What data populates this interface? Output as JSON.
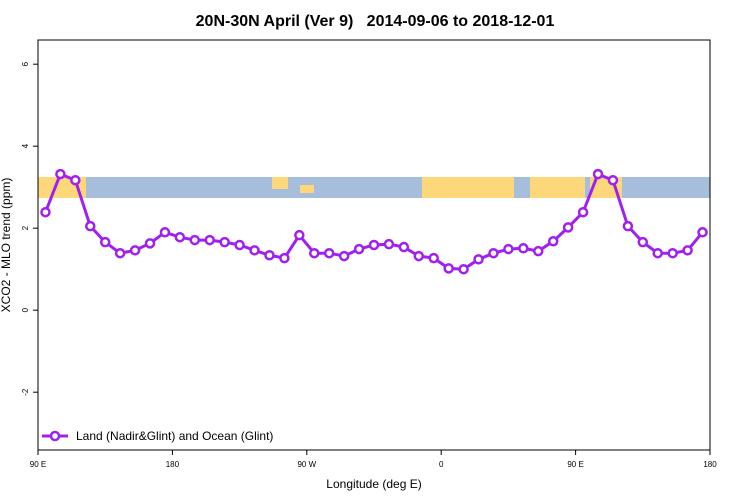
{
  "chart_data": {
    "type": "line",
    "title": "20N-30N April (Ver 9)   2014-09-06 to 2018-12-01",
    "xlabel": "Longitude (deg E)",
    "ylabel": "XCO2 - MLO trend (ppm)",
    "x": [
      95,
      105,
      115,
      125,
      135,
      145,
      155,
      165,
      175,
      185,
      195,
      205,
      215,
      225,
      235,
      245,
      255,
      265,
      275,
      285,
      295,
      305,
      315,
      325,
      335,
      345,
      355,
      365,
      375,
      385,
      395,
      405,
      415,
      425,
      435,
      445,
      455,
      465,
      475,
      485,
      495,
      505,
      515,
      525,
      535
    ],
    "series": [
      {
        "name": "Land (Nadir&Glint) and Ocean (Glint)",
        "color": "#a020f0",
        "values": [
          2.39,
          3.32,
          3.17,
          2.05,
          1.66,
          1.39,
          1.46,
          1.63,
          1.9,
          1.78,
          1.71,
          1.71,
          1.66,
          1.59,
          1.46,
          1.34,
          1.27,
          1.83,
          1.39,
          1.39,
          1.32,
          1.49,
          1.59,
          1.61,
          1.54,
          1.32,
          1.27,
          1.02,
          1.0,
          1.24,
          1.39,
          1.49,
          1.51,
          1.44,
          1.68,
          2.02,
          2.39,
          3.32,
          3.17,
          2.05,
          1.66,
          1.39,
          1.39,
          1.46,
          1.9
        ]
      }
    ],
    "xlim": [
      90,
      540
    ],
    "xticks": [
      {
        "value": 90,
        "label": "90 E"
      },
      180,
      {
        "value": 270,
        "label": "90 W"
      },
      {
        "value": 360,
        "label": "0"
      },
      {
        "value": 450,
        "label": "90 E"
      },
      {
        "value": 540,
        "label": "180"
      }
    ],
    "ylim": [
      -3.41,
      6.59
    ],
    "yticks": [
      -2,
      0,
      2,
      4,
      6
    ],
    "legend": "bottom-left"
  }
}
